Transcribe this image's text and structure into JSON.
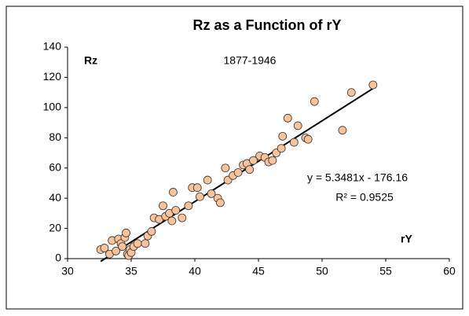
{
  "chart_data": {
    "type": "scatter",
    "title": "Rz as a Function of rY",
    "subtitle": "1877-1946",
    "y_label": "Rz",
    "x_label": "rY",
    "color": "#f8c29a",
    "x": [
      32.6,
      32.9,
      33.3,
      33.5,
      33.8,
      34.0,
      34.2,
      34.3,
      34.5,
      34.6,
      34.7,
      34.8,
      34.9,
      35.0,
      35.2,
      35.5,
      36.1,
      36.3,
      36.6,
      36.8,
      37.2,
      37.5,
      37.7,
      38.0,
      38.2,
      38.3,
      38.5,
      39.0,
      39.5,
      39.8,
      40.2,
      40.4,
      41.0,
      41.3,
      41.8,
      42.0,
      42.4,
      42.6,
      43.0,
      43.4,
      43.8,
      44.1,
      44.3,
      44.6,
      45.1,
      45.5,
      45.8,
      46.1,
      46.4,
      46.8,
      46.9,
      47.3,
      47.8,
      48.1,
      48.7,
      48.9,
      49.4,
      51.6,
      52.3,
      54.0
    ],
    "values": [
      6,
      7,
      3,
      12,
      5,
      13,
      10,
      8,
      14,
      17,
      3,
      2,
      6,
      4,
      8,
      10,
      10,
      15,
      18,
      27,
      26,
      35,
      28,
      30,
      25,
      44,
      32,
      27,
      35,
      47,
      47,
      41,
      52,
      43,
      40,
      37,
      60,
      52,
      55,
      57,
      62,
      63,
      59,
      65,
      68,
      67,
      64,
      65,
      70,
      73,
      81,
      93,
      77,
      88,
      80,
      79,
      104,
      85,
      110,
      115
    ],
    "trendline": {
      "slope": 5.3481,
      "intercept": -176.16,
      "equation": "y = 5.3481x - 176.16",
      "r2_label": "R² = 0.9525"
    },
    "xlim": [
      30,
      60
    ],
    "xticks": [
      30,
      35,
      40,
      45,
      50,
      55,
      60
    ],
    "ylim": [
      0,
      140
    ],
    "yticks": [
      0,
      20,
      40,
      60,
      80,
      100,
      120,
      140
    ]
  }
}
